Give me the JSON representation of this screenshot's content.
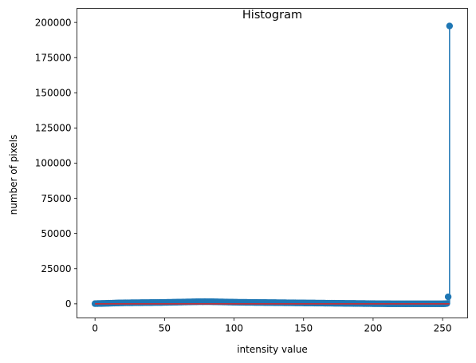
{
  "chart_data": {
    "type": "stem",
    "title": "Histogram",
    "xlabel": "intensity value",
    "ylabel": "number of pixels",
    "xlim": [
      -13,
      268
    ],
    "ylim": [
      -10000,
      210000
    ],
    "xticks": [
      0,
      50,
      100,
      150,
      200,
      250
    ],
    "yticks": [
      0,
      25000,
      50000,
      75000,
      100000,
      125000,
      150000,
      175000,
      200000
    ],
    "grid": false,
    "colors": {
      "stem": "#1f77b4",
      "baseline": "#d62728"
    },
    "bins": {
      "x_start": 0,
      "x_step": 1,
      "counts": [
        150,
        180,
        210,
        240,
        260,
        280,
        310,
        330,
        360,
        390,
        420,
        450,
        480,
        510,
        540,
        570,
        600,
        630,
        650,
        670,
        690,
        710,
        730,
        740,
        750,
        760,
        770,
        780,
        790,
        800,
        810,
        820,
        830,
        840,
        850,
        860,
        870,
        880,
        890,
        900,
        910,
        920,
        930,
        940,
        950,
        960,
        970,
        980,
        990,
        1000,
        1020,
        1040,
        1060,
        1080,
        1100,
        1120,
        1140,
        1160,
        1180,
        1200,
        1220,
        1240,
        1260,
        1280,
        1300,
        1320,
        1340,
        1360,
        1380,
        1400,
        1420,
        1440,
        1460,
        1480,
        1500,
        1510,
        1520,
        1530,
        1540,
        1550,
        1540,
        1530,
        1520,
        1510,
        1500,
        1480,
        1460,
        1440,
        1420,
        1400,
        1380,
        1360,
        1340,
        1320,
        1300,
        1280,
        1260,
        1240,
        1220,
        1200,
        1180,
        1160,
        1140,
        1120,
        1100,
        1090,
        1080,
        1070,
        1060,
        1050,
        1040,
        1030,
        1020,
        1010,
        1000,
        990,
        980,
        970,
        960,
        950,
        940,
        930,
        920,
        910,
        900,
        890,
        880,
        870,
        860,
        850,
        840,
        830,
        820,
        810,
        800,
        790,
        780,
        770,
        760,
        750,
        740,
        730,
        720,
        710,
        700,
        690,
        680,
        670,
        660,
        650,
        640,
        630,
        620,
        610,
        600,
        590,
        580,
        570,
        560,
        550,
        540,
        530,
        520,
        510,
        500,
        490,
        480,
        470,
        460,
        450,
        440,
        430,
        420,
        410,
        400,
        390,
        380,
        370,
        360,
        350,
        340,
        330,
        320,
        310,
        300,
        290,
        280,
        270,
        260,
        250,
        240,
        230,
        220,
        210,
        200,
        190,
        180,
        170,
        160,
        150,
        140,
        130,
        120,
        110,
        100,
        95,
        90,
        85,
        80,
        75,
        70,
        65,
        60,
        55,
        50,
        48,
        46,
        44,
        42,
        40,
        38,
        36,
        34,
        32,
        30,
        28,
        26,
        24,
        22,
        20,
        20,
        20,
        20,
        20,
        20,
        20,
        20,
        20,
        20,
        20,
        20,
        20,
        20,
        20,
        20,
        20,
        20,
        20,
        20,
        20,
        30,
        60,
        120,
        250,
        5000,
        197500
      ]
    }
  }
}
